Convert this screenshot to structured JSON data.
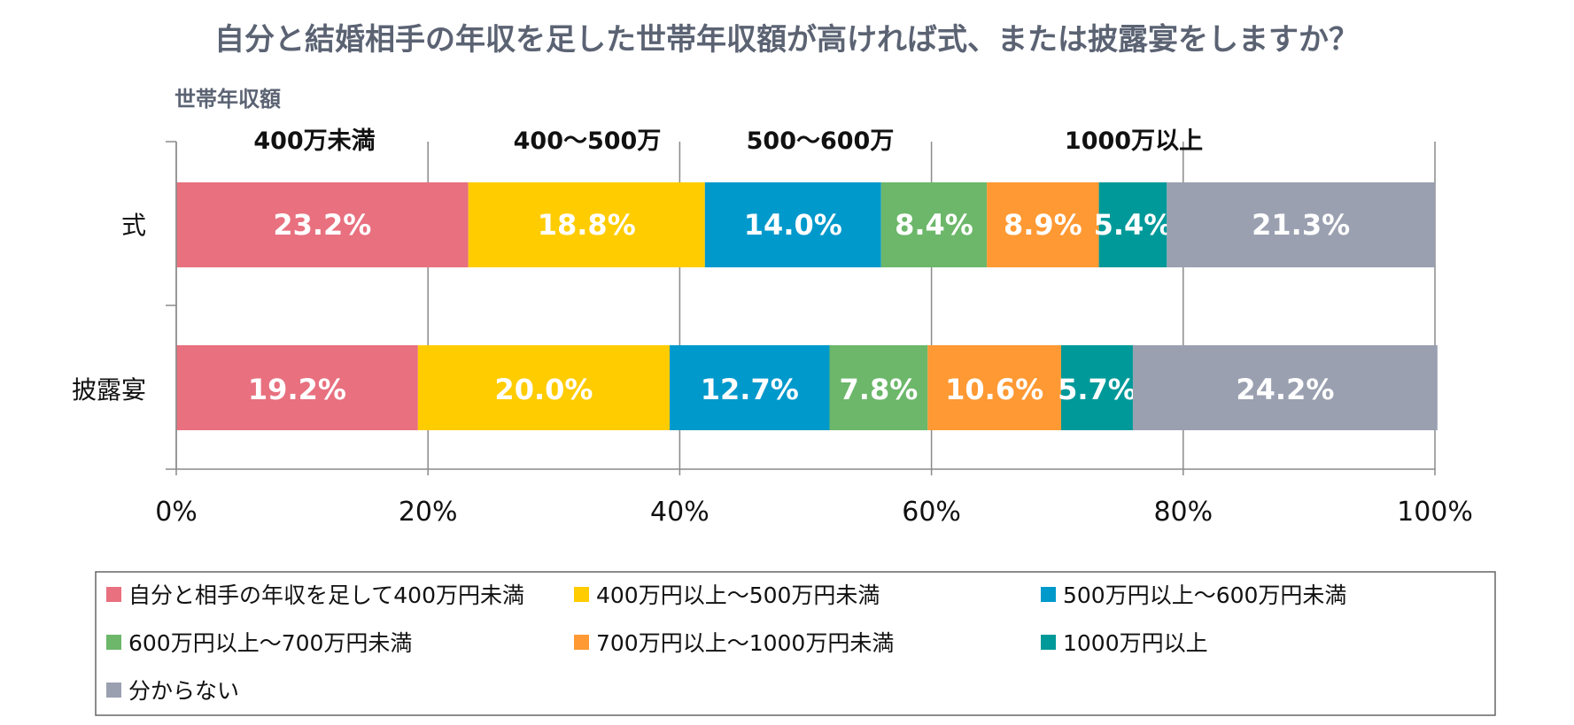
{
  "chart_data": {
    "type": "bar",
    "orientation": "horizontal-stacked-100",
    "title": "自分と結婚相手の年収を足した世帯年収額が高ければ式、または披露宴をしますか？",
    "subtitle": "世帯年収額",
    "group_headers": [
      "400万未満",
      "400～500万",
      "500～600万",
      "1000万以上"
    ],
    "categories": [
      "式",
      "披露宴"
    ],
    "series": [
      {
        "name": "自分と相手の年収を足して400万円未満",
        "color": "#e8707f",
        "values": [
          23.2,
          19.2
        ],
        "labels": [
          "23.2%",
          "19.2%"
        ]
      },
      {
        "name": "400万円以上～500万円未満",
        "color": "#ffcc00",
        "values": [
          18.8,
          20.0
        ],
        "labels": [
          "18.8%",
          "20.0%"
        ]
      },
      {
        "name": "500万円以上～600万円未満",
        "color": "#0099cc",
        "values": [
          14.0,
          12.7
        ],
        "labels": [
          "14.0%",
          "12.7%"
        ]
      },
      {
        "name": "600万円以上～700万円未満",
        "color": "#6cb76a",
        "values": [
          8.4,
          7.8
        ],
        "labels": [
          "8.4%",
          "7.8%"
        ]
      },
      {
        "name": "700万円以上～1000万円未満",
        "color": "#ff9933",
        "values": [
          8.9,
          10.6
        ],
        "labels": [
          "8.9%",
          "10.6%"
        ]
      },
      {
        "name": "1000万円以上",
        "color": "#009999",
        "values": [
          5.4,
          5.7
        ],
        "labels": [
          "5.4%",
          "5.7%"
        ]
      },
      {
        "name": "分からない",
        "color": "#9aa0b0",
        "values": [
          21.3,
          24.2
        ],
        "labels": [
          "21.3%",
          "24.2%"
        ]
      }
    ],
    "x_ticks": [
      "0%",
      "20%",
      "40%",
      "60%",
      "80%",
      "100%"
    ],
    "xlim": [
      0,
      100
    ],
    "grid": true,
    "legend_position": "bottom"
  }
}
